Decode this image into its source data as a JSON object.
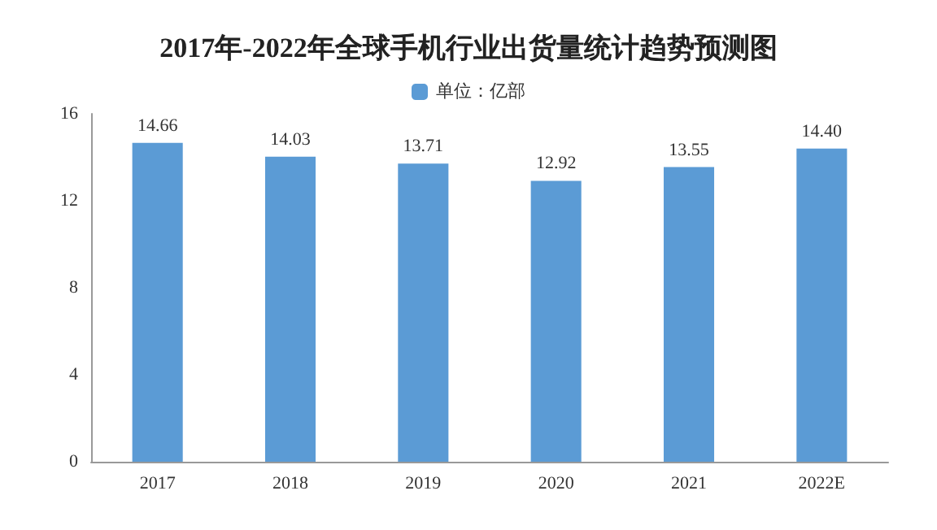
{
  "chart_data": {
    "type": "bar",
    "title": "2017年-2022年全球手机行业出货量统计趋势预测图",
    "categories": [
      "2017",
      "2018",
      "2019",
      "2020",
      "2021",
      "2022E"
    ],
    "series": [
      {
        "name": "单位：亿部",
        "color": "#5b9bd5",
        "values": [
          14.66,
          14.03,
          13.71,
          12.92,
          13.55,
          14.4
        ],
        "value_labels": [
          "14.66",
          "14.03",
          "13.71",
          "12.92",
          "13.55",
          "14.40"
        ]
      }
    ],
    "ylim": [
      0,
      16
    ],
    "yticks": [
      0,
      4,
      8,
      12,
      16
    ],
    "grid": false,
    "legend": "top"
  }
}
